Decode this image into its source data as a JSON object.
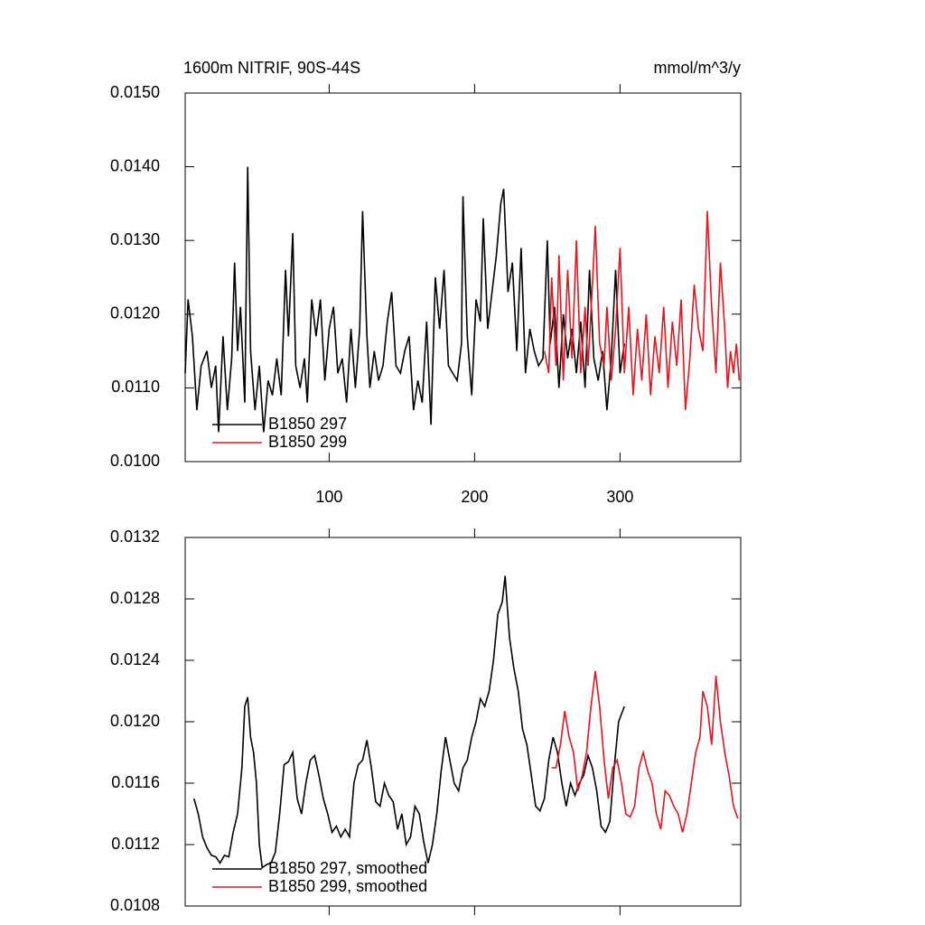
{
  "chart_data": [
    {
      "type": "line",
      "title": "1600m NITRIF, 90S-44S",
      "units": "mmol/m^3/y",
      "xlim": [
        1,
        383
      ],
      "xticks": [
        100,
        200,
        300
      ],
      "ylim": [
        0.01,
        0.015
      ],
      "yticks": [
        {
          "value": 0.01,
          "label": "0.0100"
        },
        {
          "value": 0.011,
          "label": "0.0110"
        },
        {
          "value": 0.012,
          "label": "0.0120"
        },
        {
          "value": 0.013,
          "label": "0.0130"
        },
        {
          "value": 0.014,
          "label": "0.0140"
        },
        {
          "value": 0.015,
          "label": "0.0150"
        }
      ],
      "legend": "lower-left",
      "series": [
        {
          "name": "B1850 297",
          "color": "#000000",
          "x": [
            1,
            3,
            6,
            9,
            12,
            16,
            19,
            22,
            24,
            27,
            30,
            33,
            35,
            37,
            39,
            42,
            44,
            46,
            49,
            52,
            55,
            58,
            61,
            64,
            67,
            70,
            72,
            75,
            77,
            80,
            83,
            85,
            88,
            91,
            94,
            97,
            100,
            103,
            106,
            109,
            112,
            115,
            118,
            121,
            123,
            126,
            128,
            131,
            134,
            137,
            140,
            143,
            146,
            149,
            152,
            155,
            158,
            161,
            164,
            167,
            170,
            173,
            176,
            179,
            182,
            185,
            188,
            191,
            192,
            195,
            198,
            201,
            204,
            206,
            209,
            212,
            215,
            218,
            220,
            223,
            226,
            229,
            232,
            235,
            238,
            241,
            244,
            247,
            250,
            252,
            255,
            258,
            261,
            264,
            267,
            270,
            273,
            276,
            279,
            282,
            285,
            288,
            291,
            294,
            297,
            300,
            303
          ],
          "values": [
            0.0112,
            0.0122,
            0.0117,
            0.0107,
            0.0113,
            0.0115,
            0.011,
            0.0113,
            0.0104,
            0.0117,
            0.0107,
            0.0114,
            0.0127,
            0.0115,
            0.0121,
            0.0108,
            0.014,
            0.0115,
            0.0107,
            0.0113,
            0.0104,
            0.0111,
            0.0109,
            0.0114,
            0.0109,
            0.0126,
            0.0117,
            0.0131,
            0.0113,
            0.011,
            0.0114,
            0.0108,
            0.0122,
            0.0117,
            0.0122,
            0.0111,
            0.0118,
            0.0121,
            0.0112,
            0.0114,
            0.0108,
            0.0118,
            0.011,
            0.0118,
            0.0134,
            0.0117,
            0.011,
            0.0115,
            0.0111,
            0.0113,
            0.0119,
            0.0123,
            0.0113,
            0.0112,
            0.0115,
            0.0117,
            0.0107,
            0.0111,
            0.0108,
            0.0119,
            0.0105,
            0.0125,
            0.0118,
            0.0126,
            0.0113,
            0.0112,
            0.0111,
            0.0116,
            0.0136,
            0.0117,
            0.0109,
            0.0122,
            0.0119,
            0.0133,
            0.0118,
            0.0123,
            0.0128,
            0.0135,
            0.0137,
            0.0123,
            0.0127,
            0.0115,
            0.0129,
            0.0112,
            0.0118,
            0.0115,
            0.0113,
            0.0114,
            0.013,
            0.0116,
            0.0121,
            0.011,
            0.012,
            0.0114,
            0.0118,
            0.0112,
            0.0119,
            0.011,
            0.0126,
            0.0114,
            0.0111,
            0.0115,
            0.0107,
            0.0114,
            0.0126,
            0.0112,
            0.0116
          ]
        },
        {
          "name": "B1850 299",
          "color": "#e8141e",
          "x": [
            248,
            251,
            253,
            256,
            258,
            261,
            264,
            267,
            270,
            273,
            276,
            278,
            281,
            283,
            286,
            289,
            291,
            294,
            297,
            300,
            303,
            306,
            309,
            312,
            315,
            318,
            321,
            324,
            327,
            330,
            333,
            336,
            339,
            342,
            345,
            348,
            351,
            354,
            357,
            360,
            363,
            366,
            369,
            372,
            374,
            376,
            378,
            380,
            382
          ],
          "values": [
            0.0115,
            0.0112,
            0.0125,
            0.0113,
            0.0128,
            0.0111,
            0.0126,
            0.0114,
            0.013,
            0.0112,
            0.0121,
            0.0113,
            0.0124,
            0.0132,
            0.0116,
            0.0113,
            0.0121,
            0.0111,
            0.0118,
            0.0129,
            0.0112,
            0.0121,
            0.0109,
            0.0118,
            0.0111,
            0.012,
            0.0109,
            0.0117,
            0.0112,
            0.0121,
            0.011,
            0.0119,
            0.0113,
            0.0122,
            0.0107,
            0.0114,
            0.0124,
            0.0118,
            0.0115,
            0.0134,
            0.0121,
            0.0112,
            0.0127,
            0.0118,
            0.011,
            0.0115,
            0.0112,
            0.0116,
            0.0111
          ]
        }
      ]
    },
    {
      "type": "line",
      "xlim": [
        1,
        383
      ],
      "xticks": [
        100,
        200,
        300
      ],
      "ylim": [
        0.0108,
        0.0132
      ],
      "yticks": [
        {
          "value": 0.0108,
          "label": "0.0108"
        },
        {
          "value": 0.0112,
          "label": "0.0112"
        },
        {
          "value": 0.0116,
          "label": "0.0116"
        },
        {
          "value": 0.012,
          "label": "0.0120"
        },
        {
          "value": 0.0124,
          "label": "0.0124"
        },
        {
          "value": 0.0128,
          "label": "0.0128"
        },
        {
          "value": 0.0132,
          "label": "0.0132"
        }
      ],
      "legend": "lower-left",
      "series": [
        {
          "name": "B1850 297, smoothed",
          "color": "#000000",
          "x": [
            7,
            10,
            13,
            16,
            19,
            22,
            25,
            28,
            31,
            34,
            37,
            40,
            42,
            44,
            46,
            48,
            50,
            52,
            54,
            57,
            60,
            63,
            66,
            69,
            72,
            75,
            78,
            81,
            84,
            87,
            90,
            93,
            96,
            99,
            102,
            105,
            108,
            111,
            114,
            117,
            120,
            123,
            126,
            129,
            132,
            135,
            138,
            141,
            144,
            147,
            150,
            153,
            156,
            159,
            162,
            165,
            168,
            171,
            174,
            177,
            180,
            183,
            186,
            189,
            192,
            195,
            198,
            201,
            204,
            207,
            210,
            213,
            216,
            219,
            221,
            224,
            227,
            230,
            233,
            236,
            239,
            242,
            245,
            248,
            251,
            254,
            257,
            260,
            263,
            266,
            269,
            272,
            275,
            278,
            281,
            284,
            287,
            290,
            293,
            296,
            299,
            303
          ],
          "values": [
            0.0115,
            0.0114,
            0.01125,
            0.01118,
            0.01113,
            0.01112,
            0.01108,
            0.01113,
            0.01112,
            0.01128,
            0.0114,
            0.0117,
            0.0121,
            0.01216,
            0.0119,
            0.0118,
            0.0116,
            0.0112,
            0.01105,
            0.01107,
            0.01108,
            0.01115,
            0.0114,
            0.01172,
            0.01174,
            0.0118,
            0.0115,
            0.0114,
            0.0116,
            0.01175,
            0.01178,
            0.01165,
            0.0115,
            0.0114,
            0.01128,
            0.01132,
            0.01125,
            0.0113,
            0.01125,
            0.0116,
            0.01172,
            0.01175,
            0.01188,
            0.0117,
            0.01148,
            0.01145,
            0.0116,
            0.01152,
            0.01148,
            0.0113,
            0.0114,
            0.0112,
            0.01125,
            0.01145,
            0.0114,
            0.01122,
            0.01108,
            0.0112,
            0.0114,
            0.01168,
            0.0119,
            0.01175,
            0.0116,
            0.01155,
            0.0117,
            0.01175,
            0.0119,
            0.012,
            0.01215,
            0.0121,
            0.0122,
            0.0124,
            0.0127,
            0.01278,
            0.01295,
            0.01255,
            0.01235,
            0.0122,
            0.01195,
            0.01185,
            0.01165,
            0.01145,
            0.01142,
            0.0115,
            0.01175,
            0.0119,
            0.0118,
            0.0116,
            0.01145,
            0.0116,
            0.01152,
            0.0116,
            0.01165,
            0.01178,
            0.0117,
            0.01155,
            0.01132,
            0.01128,
            0.01135,
            0.0117,
            0.012,
            0.0121
          ]
        },
        {
          "name": "B1850 299, smoothed",
          "color": "#e8141e",
          "x": [
            253,
            256,
            259,
            262,
            265,
            268,
            271,
            274,
            277,
            280,
            283,
            286,
            289,
            292,
            295,
            298,
            301,
            304,
            307,
            310,
            313,
            316,
            319,
            322,
            325,
            328,
            331,
            334,
            337,
            340,
            343,
            346,
            349,
            352,
            355,
            357,
            360,
            363,
            366,
            369,
            372,
            375,
            378,
            381
          ],
          "values": [
            0.0117,
            0.0117,
            0.01185,
            0.01207,
            0.0119,
            0.0118,
            0.01155,
            0.01165,
            0.0118,
            0.0121,
            0.01233,
            0.0121,
            0.01175,
            0.0115,
            0.0117,
            0.01175,
            0.0116,
            0.0114,
            0.01138,
            0.01145,
            0.0117,
            0.0118,
            0.01168,
            0.0116,
            0.0114,
            0.0113,
            0.01155,
            0.01152,
            0.01145,
            0.0114,
            0.01128,
            0.0114,
            0.0116,
            0.0118,
            0.0119,
            0.0122,
            0.0121,
            0.01185,
            0.0123,
            0.012,
            0.0118,
            0.01165,
            0.01145,
            0.01137
          ]
        }
      ]
    }
  ]
}
